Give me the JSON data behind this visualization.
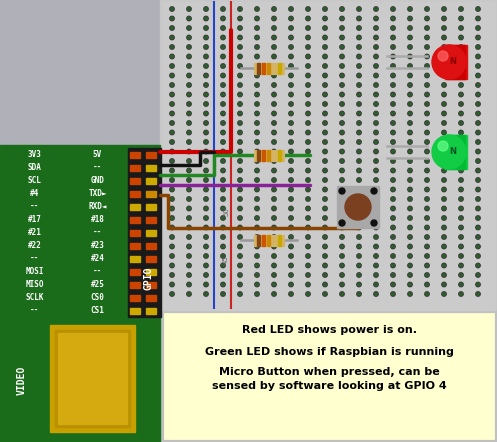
{
  "figsize": [
    4.97,
    4.42
  ],
  "dpi": 100,
  "gpio_labels_left": [
    "3V3",
    "SDA",
    "SCL",
    "#4",
    "--",
    "#17",
    "#21",
    "#22",
    "--",
    "MOSI",
    "MISO",
    "SCLK",
    "--"
  ],
  "gpio_labels_right": [
    "5V",
    "--",
    "GND",
    "TXD►",
    "RXD◄",
    "#18",
    "--",
    "#23",
    "#24",
    "--",
    "#25",
    "CS0",
    "CS1"
  ],
  "text_box_bg": "#ffffd0",
  "text_box_edge": "#ff0000",
  "text_lines": [
    "Red LED shows power is on.",
    "Green LED shows if Raspbian is running",
    "Micro Button when pressed, can be",
    "sensed by software looking at GPIO 4"
  ],
  "bg_gray": "#b8b8b8",
  "bb_color": "#c8c8c8",
  "green_pcb": "#1a6b1a"
}
